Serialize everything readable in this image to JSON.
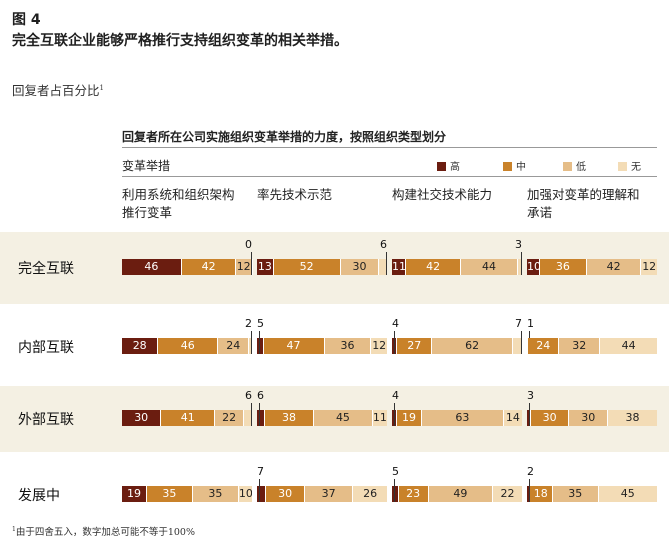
{
  "figure_label": "图 4",
  "title": "完全互联企业能够严格推行支持组织变革的相关举措。",
  "subtitle": "回复者占百分比",
  "subtitle_marker": "1",
  "footnote_marker": "1",
  "footnote": "由于四舍五入，数字加总可能不等于100%",
  "colors": {
    "高": "#6b1d10",
    "中": "#c9822a",
    "低": "#e5bd88",
    "无": "#f3dcb6",
    "band": "#f4f0e3"
  },
  "chart_data": {
    "type": "bar",
    "stacked": true,
    "orientation": "horizontal",
    "title": "回复者所在公司实施组织变革举措的力度，按照组织类型划分",
    "group_label": "变革举措",
    "legend": [
      "高",
      "中",
      "低",
      "无"
    ],
    "legend_position": "top-right",
    "row_categories": [
      "完全互联",
      "内部互联",
      "外部互联",
      "发展中"
    ],
    "panels": [
      {
        "name": "利用系统和组织架构推行变革",
        "series": [
          {
            "name": "高",
            "values": [
              46,
              28,
              30,
              19
            ]
          },
          {
            "name": "中",
            "values": [
              42,
              46,
              41,
              35
            ]
          },
          {
            "name": "低",
            "values": [
              12,
              24,
              22,
              35
            ]
          },
          {
            "name": "无",
            "values": [
              0,
              2,
              6,
              10
            ]
          }
        ]
      },
      {
        "name": "率先技术示范",
        "series": [
          {
            "name": "高",
            "values": [
              13,
              5,
              6,
              7
            ]
          },
          {
            "name": "中",
            "values": [
              52,
              47,
              38,
              30
            ]
          },
          {
            "name": "低",
            "values": [
              30,
              36,
              45,
              37
            ]
          },
          {
            "name": "无",
            "values": [
              6,
              12,
              11,
              26
            ]
          }
        ]
      },
      {
        "name": "构建社交技术能力",
        "series": [
          {
            "name": "高",
            "values": [
              11,
              4,
              4,
              5
            ]
          },
          {
            "name": "中",
            "values": [
              42,
              27,
              19,
              23
            ]
          },
          {
            "name": "低",
            "values": [
              44,
              62,
              63,
              49
            ]
          },
          {
            "name": "无",
            "values": [
              3,
              7,
              14,
              22
            ]
          }
        ]
      },
      {
        "name": "加强对变革的理解和承诺",
        "series": [
          {
            "name": "高",
            "values": [
              10,
              1,
              3,
              2
            ]
          },
          {
            "name": "中",
            "values": [
              36,
              24,
              30,
              18
            ]
          },
          {
            "name": "低",
            "values": [
              42,
              32,
              30,
              35
            ]
          },
          {
            "name": "无",
            "values": [
              12,
              44,
              38,
              45
            ]
          }
        ]
      }
    ]
  }
}
